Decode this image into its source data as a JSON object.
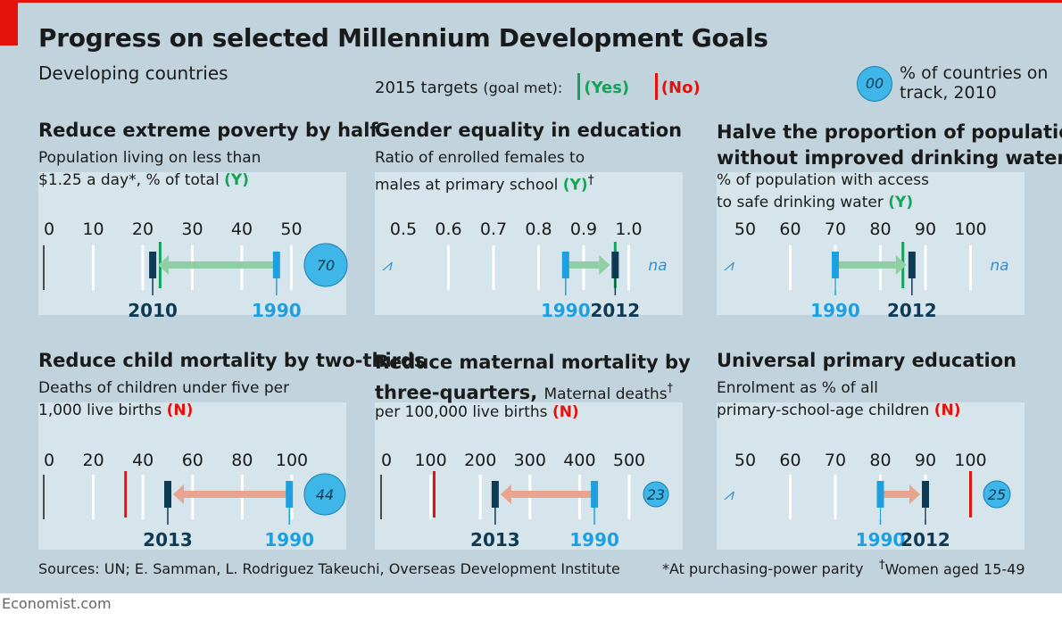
{
  "title": "Progress on selected Millennium Development Goals",
  "subtitle": "Developing countries",
  "legend": {
    "targets_label": "2015 targets",
    "goal_met_label": "(goal met):",
    "yes_label": "(Yes)",
    "no_label": "(No)",
    "circle_placeholder": "00",
    "circle_label": "% of countries on track, 2010",
    "colors": {
      "yes": "#14a358",
      "no": "#e3120b",
      "improve_arrow": "#90cfa6",
      "worsen_arrow": "#e8a48c",
      "marker_start": "#1ea0e0",
      "marker_end": "#0d3b55",
      "circle": "#3fb6e8"
    }
  },
  "footer": {
    "sources": "Sources: UN; E. Samman, L. Rodriguez Takeuchi, Overseas Development Institute",
    "footnote_ppp": "*At purchasing-power parity",
    "footnote_women_mark": "†",
    "footnote_women": "Women aged 15-49",
    "brand": "Economist.com"
  },
  "panels": [
    {
      "title": "Reduce extreme poverty by half",
      "subtitle_lines": [
        "Population living on less than",
        "$1.25 a day*, % of total"
      ],
      "goal_met": "(Y)"
    },
    {
      "title": "Gender equality in education",
      "subtitle_lines": [
        "Ratio of enrolled females to",
        "males at primary school"
      ],
      "goal_met": "(Y)",
      "dagger": "†"
    },
    {
      "title_lines": [
        "Halve the proportion of population",
        "without improved drinking water"
      ],
      "subtitle_lines": [
        "% of population with access",
        "to safe drinking water"
      ],
      "goal_met": "(Y)"
    },
    {
      "title": "Reduce child mortality by two-thirds",
      "subtitle_lines": [
        "Deaths of children under five per",
        "1,000 live births"
      ],
      "goal_met": "(N)"
    },
    {
      "title_lines": [
        "Reduce maternal mortality by",
        "three-quarters,"
      ],
      "title_suffix": "Maternal deaths",
      "dagger": "†",
      "subtitle_lines": [
        "per 100,000 live births"
      ],
      "goal_met": "(N)"
    },
    {
      "title": "Universal primary education",
      "subtitle_lines": [
        "Enrolment as % of all",
        "primary-school-age children"
      ],
      "goal_met": "(N)"
    }
  ],
  "chart_data": [
    {
      "type": "dumbbell",
      "title": "Reduce extreme poverty by half",
      "x_ticks": [
        0,
        10,
        20,
        30,
        40,
        50
      ],
      "x_tick_labels": [
        "0",
        "10",
        "20",
        "30",
        "40",
        "50"
      ],
      "xlim": [
        0,
        58
      ],
      "start": {
        "label": "1990",
        "value": 47
      },
      "end": {
        "label": "2010",
        "value": 22
      },
      "target": 23.5,
      "goal_met": true,
      "on_track_pct": "70",
      "axis_break": false
    },
    {
      "type": "dumbbell",
      "title": "Gender equality in education",
      "x_ticks": [
        0.5,
        0.6,
        0.7,
        0.8,
        0.9,
        1.0
      ],
      "x_tick_labels": [
        "0.5",
        "0.6",
        "0.7",
        "0.8",
        "0.9",
        "1.0"
      ],
      "xlim": [
        0.44,
        1.08
      ],
      "start": {
        "label": "1990",
        "value": 0.86
      },
      "end": {
        "label": "2012",
        "value": 0.97
      },
      "target": 0.97,
      "goal_met": true,
      "on_track_pct": "na",
      "axis_break": true
    },
    {
      "type": "dumbbell",
      "title": "Halve the proportion of population without improved drinking water",
      "x_ticks": [
        50,
        60,
        70,
        80,
        90,
        100
      ],
      "x_tick_labels": [
        "50",
        "60",
        "70",
        "80",
        "90",
        "100"
      ],
      "xlim": [
        44,
        108
      ],
      "start": {
        "label": "1990",
        "value": 70
      },
      "end": {
        "label": "2012",
        "value": 87
      },
      "target": 85,
      "goal_met": true,
      "on_track_pct": "na",
      "axis_break": true
    },
    {
      "type": "dumbbell",
      "title": "Reduce child mortality by two-thirds",
      "x_ticks": [
        0,
        20,
        40,
        60,
        80,
        100
      ],
      "x_tick_labels": [
        "0",
        "20",
        "40",
        "60",
        "80",
        "100"
      ],
      "xlim": [
        0,
        112
      ],
      "start": {
        "label": "1990",
        "value": 99
      },
      "end": {
        "label": "2013",
        "value": 50
      },
      "target": 33,
      "goal_met": false,
      "on_track_pct": "44",
      "axis_break": false
    },
    {
      "type": "dumbbell",
      "title": "Reduce maternal mortality by three-quarters",
      "x_ticks": [
        0,
        100,
        200,
        300,
        400,
        500
      ],
      "x_tick_labels": [
        "0",
        "100",
        "200",
        "300",
        "400",
        "500"
      ],
      "xlim": [
        0,
        560
      ],
      "start": {
        "label": "1990",
        "value": 430
      },
      "end": {
        "label": "2013",
        "value": 230
      },
      "target": 107,
      "goal_met": false,
      "on_track_pct": "23",
      "axis_break": false
    },
    {
      "type": "dumbbell",
      "title": "Universal primary education",
      "x_ticks": [
        50,
        60,
        70,
        80,
        90,
        100
      ],
      "x_tick_labels": [
        "50",
        "60",
        "70",
        "80",
        "90",
        "100"
      ],
      "xlim": [
        44,
        108
      ],
      "start": {
        "label": "1990",
        "value": 80
      },
      "end": {
        "label": "2012",
        "value": 90
      },
      "target": 100,
      "goal_met": false,
      "on_track_pct": "25",
      "axis_break": true
    }
  ]
}
